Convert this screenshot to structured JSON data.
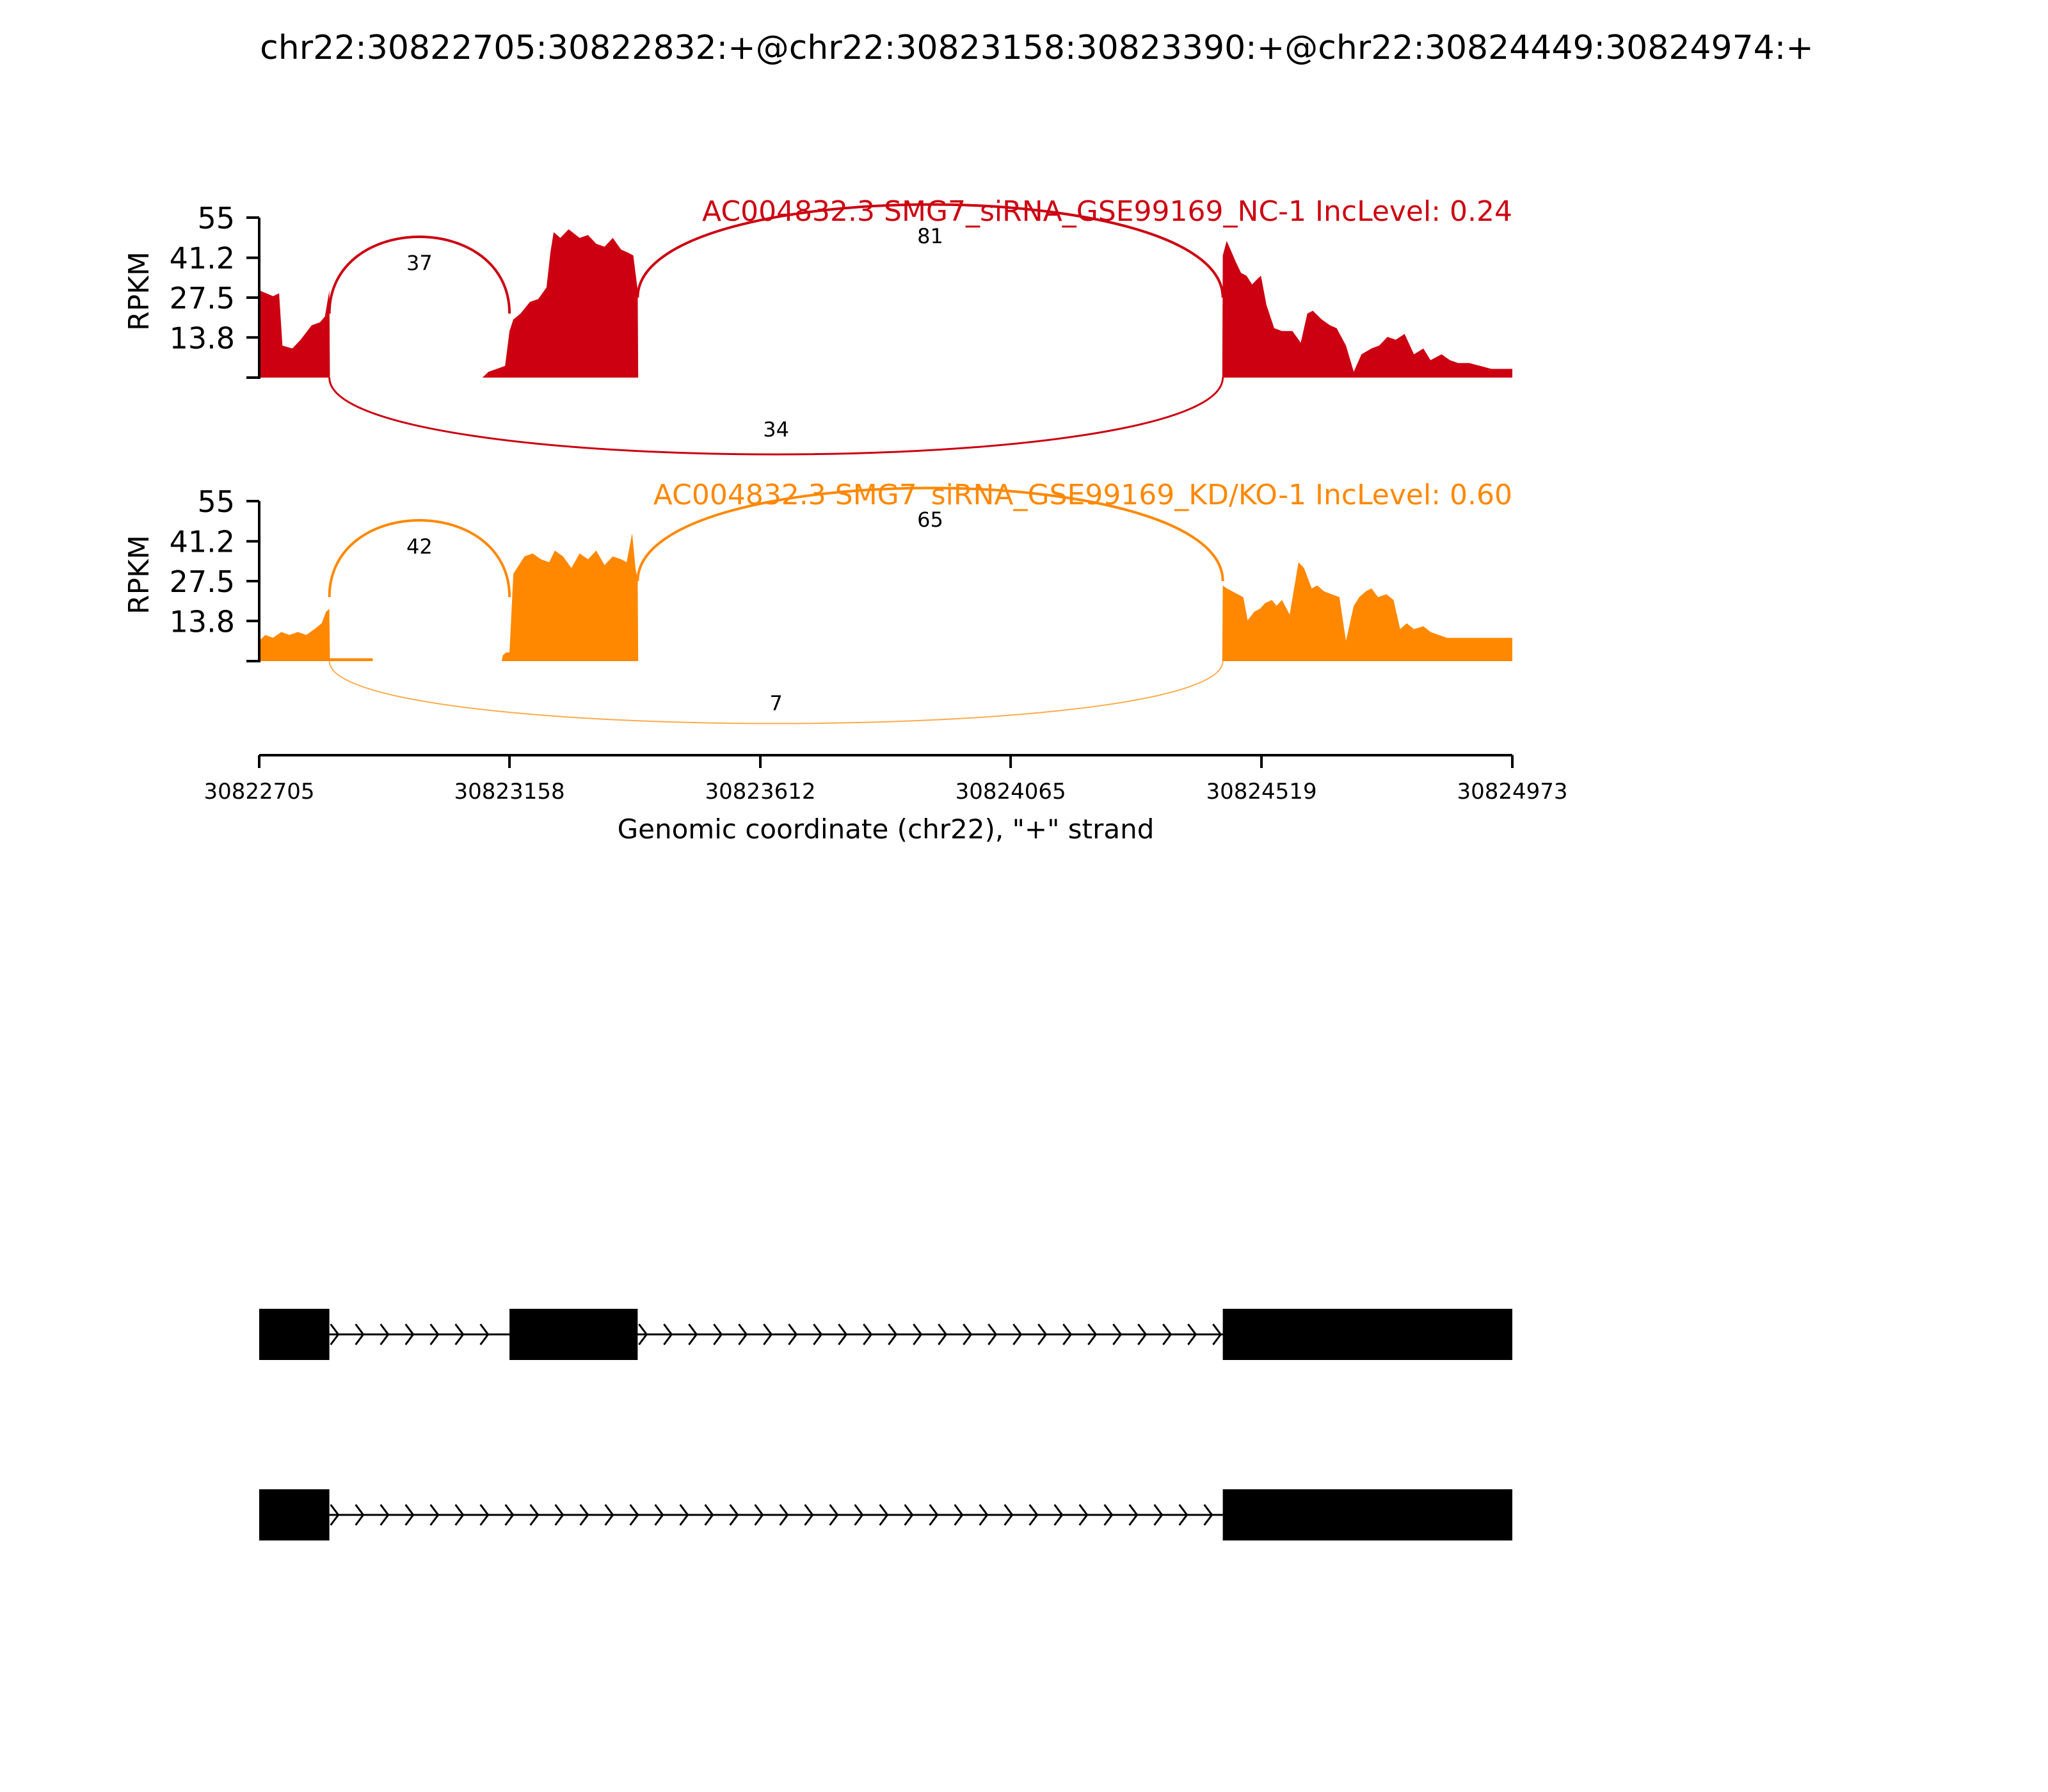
{
  "title": "chr22:30822705:30822832:+@chr22:30823158:30823390:+@chr22:30824449:30824974:+",
  "colors": {
    "nc": "#CC0011",
    "kd": "#FF8800",
    "exon": "#000000",
    "axis": "#000000"
  },
  "chart_data": [
    {
      "type": "area",
      "label": "AC004832.3 SMG7_siRNA_GSE99169_NC-1 IncLevel: 0.24",
      "ylabel": "RPKM",
      "yticks": [
        "55",
        "41.2",
        "27.5",
        "13.8"
      ],
      "ylim": [
        0,
        55
      ],
      "xlim": [
        30822705,
        30824973
      ],
      "coverage": {
        "x": [
          30822705,
          30822730,
          30822741,
          30822747,
          30822765,
          30822780,
          30822800,
          30822815,
          30822824,
          30822832,
          30822833,
          30823109,
          30823120,
          30823135,
          30823150,
          30823158,
          30823165,
          30823178,
          30823195,
          30823210,
          30823225,
          30823232,
          30823238,
          30823250,
          30823265,
          30823285,
          30823300,
          30823315,
          30823330,
          30823345,
          30823360,
          30823372,
          30823382,
          30823390,
          30823391,
          30824448,
          30824449,
          30824456,
          30824463,
          30824472,
          30824482,
          30824492,
          30824502,
          30824512,
          30824518,
          30824528,
          30824542,
          30824556,
          30824575,
          30824590,
          30824602,
          30824612,
          30824628,
          30824643,
          30824655,
          30824672,
          30824686,
          30824700,
          30824718,
          30824732,
          30824747,
          30824762,
          30824778,
          30824795,
          30824812,
          30824825,
          30824845,
          30824860,
          30824875,
          30824895,
          30824915,
          30824935,
          30824955,
          30824973
        ],
        "y": [
          30,
          28,
          29,
          11,
          10,
          13,
          18,
          19,
          21,
          30,
          0,
          0,
          2,
          3,
          4,
          16,
          20,
          22,
          26,
          27,
          31,
          43,
          50,
          48,
          51,
          48,
          49,
          46,
          45,
          48,
          44,
          43,
          42,
          30,
          0,
          0,
          42,
          47,
          44,
          40,
          36,
          35,
          32,
          34,
          35,
          25,
          17,
          16,
          16,
          12,
          22,
          23,
          20,
          18,
          17,
          11,
          2,
          8,
          10,
          11,
          14,
          13,
          15,
          8,
          10,
          6,
          8,
          6,
          5,
          5,
          4,
          3,
          3,
          3
        ]
      },
      "junctions": [
        {
          "from": 30822832,
          "to": 30823158,
          "count": "37",
          "side": "above"
        },
        {
          "from": 30823390,
          "to": 30824449,
          "count": "81",
          "side": "above"
        },
        {
          "from": 30822832,
          "to": 30824449,
          "count": "34",
          "side": "below"
        }
      ]
    },
    {
      "type": "area",
      "label": "AC004832.3 SMG7_siRNA_GSE99169_KD/KO-1 IncLevel: 0.60",
      "ylabel": "RPKM",
      "yticks": [
        "55",
        "41.2",
        "27.5",
        "13.8"
      ],
      "ylim": [
        0,
        55
      ],
      "xlim": [
        30822705,
        30824973
      ],
      "coverage": {
        "x": [
          30822705,
          30822716,
          30822730,
          30822745,
          30822760,
          30822775,
          30822790,
          30822805,
          30822818,
          30822826,
          30822832,
          30822833,
          30822910,
          30822911,
          30823144,
          30823146,
          30823152,
          30823158,
          30823165,
          30823175,
          30823185,
          30823200,
          30823215,
          30823230,
          30823240,
          30823255,
          30823270,
          30823285,
          30823300,
          30823315,
          30823330,
          30823345,
          30823360,
          30823370,
          30823380,
          30823386,
          30823390,
          30823391,
          30824448,
          30824449,
          30824456,
          30824466,
          30824476,
          30824486,
          30824494,
          30824506,
          30824516,
          30824526,
          30824538,
          30824546,
          30824556,
          30824570,
          30824586,
          30824596,
          30824610,
          30824620,
          30824632,
          30824646,
          30824660,
          30824672,
          30824686,
          30824696,
          30824708,
          30824718,
          30824730,
          30824745,
          30824758,
          30824770,
          30824782,
          30824795,
          30824812,
          30824825,
          30824840,
          30824855,
          30824870,
          30824885,
          30824900,
          30824920,
          30824940,
          30824955,
          30824973
        ],
        "y": [
          7,
          9,
          8,
          10,
          9,
          10,
          9,
          11,
          13,
          17,
          18,
          1,
          1,
          0,
          0,
          2,
          3,
          3,
          30,
          33,
          36,
          37,
          35,
          34,
          38,
          36,
          32,
          37,
          35,
          38,
          33,
          36,
          35,
          34,
          44,
          32,
          28,
          0,
          0,
          26,
          25,
          24,
          23,
          22,
          14,
          17,
          18,
          20,
          21,
          19,
          21,
          16,
          34,
          32,
          25,
          26,
          24,
          23,
          22,
          7,
          19,
          22,
          24,
          25,
          22,
          23,
          21,
          11,
          13,
          11,
          12,
          10,
          9,
          8,
          8,
          8,
          8,
          8,
          8,
          8,
          8
        ]
      },
      "junctions": [
        {
          "from": 30822832,
          "to": 30823158,
          "count": "42",
          "side": "above"
        },
        {
          "from": 30823390,
          "to": 30824449,
          "count": "65",
          "side": "above"
        },
        {
          "from": 30822832,
          "to": 30824449,
          "count": "7",
          "side": "below"
        }
      ]
    }
  ],
  "xaxis": {
    "ticks": [
      30822705,
      30823158,
      30823612,
      30824065,
      30824519,
      30824973
    ],
    "tick_labels": [
      "30822705",
      "30823158",
      "30823612",
      "30824065",
      "30824519",
      "30824973"
    ],
    "label": "Genomic coordinate (chr22), \"+\" strand"
  },
  "isoforms": [
    {
      "exons": [
        [
          30822705,
          30822832
        ],
        [
          30823158,
          30823390
        ],
        [
          30824449,
          30824973
        ]
      ]
    },
    {
      "exons": [
        [
          30822705,
          30822832
        ],
        [
          30824449,
          30824973
        ]
      ]
    }
  ]
}
